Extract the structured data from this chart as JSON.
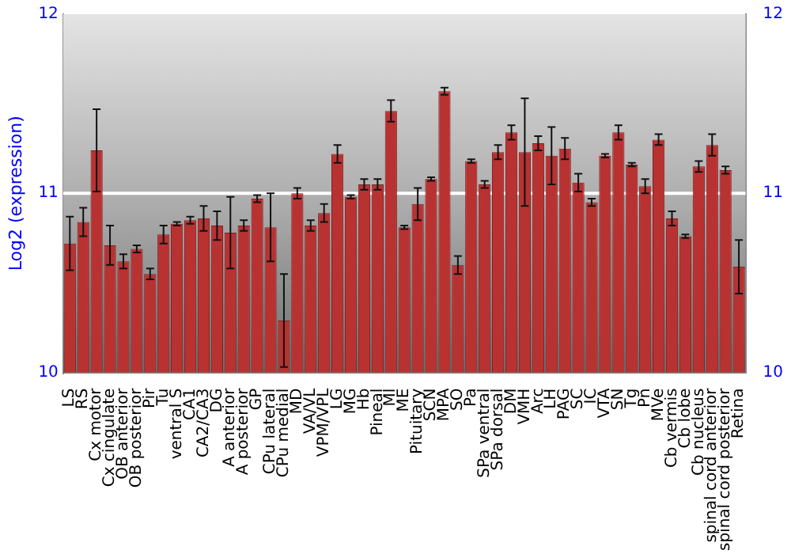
{
  "chart_data": {
    "type": "bar",
    "ylabel": "Log2 (expression)",
    "categories": [
      "LS",
      "RS",
      "Cx motor",
      "Cx cingulate",
      "OB anterior",
      "OB posterior",
      "Pir",
      "Tu",
      "ventral S",
      "CA1",
      "CA2/CA3",
      "DG",
      "A anterior",
      "A posterior",
      "GP",
      "CPu lateral",
      "CPu medial",
      "MD",
      "VA/VL",
      "VPM/VPL",
      "LG",
      "MG",
      "Hb",
      "Pineal",
      "Ml",
      "ME",
      "Pituitary",
      "SCN",
      "MPA",
      "SO",
      "Pa",
      "SPa ventral",
      "SPa dorsal",
      "DM",
      "VMH",
      "Arc",
      "LH",
      "PAG",
      "SC",
      "IC",
      "VTA",
      "SN",
      "Tg",
      "Pn",
      "MVe",
      "Cb vermis",
      "Cb lobe",
      "Cb nucleus",
      "spinal cord anterior",
      "spinal cord posterior",
      "Retina"
    ],
    "values": [
      10.72,
      10.84,
      11.24,
      10.71,
      10.62,
      10.69,
      10.55,
      10.77,
      10.83,
      10.85,
      10.86,
      10.82,
      10.78,
      10.82,
      10.97,
      10.81,
      10.29,
      11.0,
      10.82,
      10.89,
      11.22,
      10.98,
      11.05,
      11.05,
      11.46,
      10.81,
      10.94,
      11.08,
      11.57,
      10.6,
      11.18,
      11.05,
      11.23,
      11.34,
      11.23,
      11.28,
      11.21,
      11.25,
      11.06,
      10.95,
      11.21,
      11.34,
      11.16,
      11.04,
      11.3,
      10.86,
      10.76,
      11.15,
      11.27,
      11.13,
      10.59
    ],
    "errors": [
      0.15,
      0.08,
      0.23,
      0.11,
      0.04,
      0.02,
      0.03,
      0.05,
      0.01,
      0.02,
      0.07,
      0.08,
      0.2,
      0.03,
      0.02,
      0.19,
      0.26,
      0.03,
      0.03,
      0.05,
      0.05,
      0.01,
      0.03,
      0.03,
      0.06,
      0.01,
      0.09,
      0.01,
      0.02,
      0.05,
      0.01,
      0.02,
      0.04,
      0.04,
      0.3,
      0.04,
      0.16,
      0.06,
      0.05,
      0.02,
      0.01,
      0.04,
      0.01,
      0.04,
      0.03,
      0.04,
      0.01,
      0.03,
      0.06,
      0.02,
      0.15
    ],
    "color": "#b83232",
    "ylim": [
      10,
      12
    ],
    "yticks": [
      10,
      11,
      12
    ],
    "y2lim": [
      10,
      12
    ],
    "y2ticks": [
      10,
      11,
      12
    ],
    "grid": "y",
    "legend": false
  }
}
